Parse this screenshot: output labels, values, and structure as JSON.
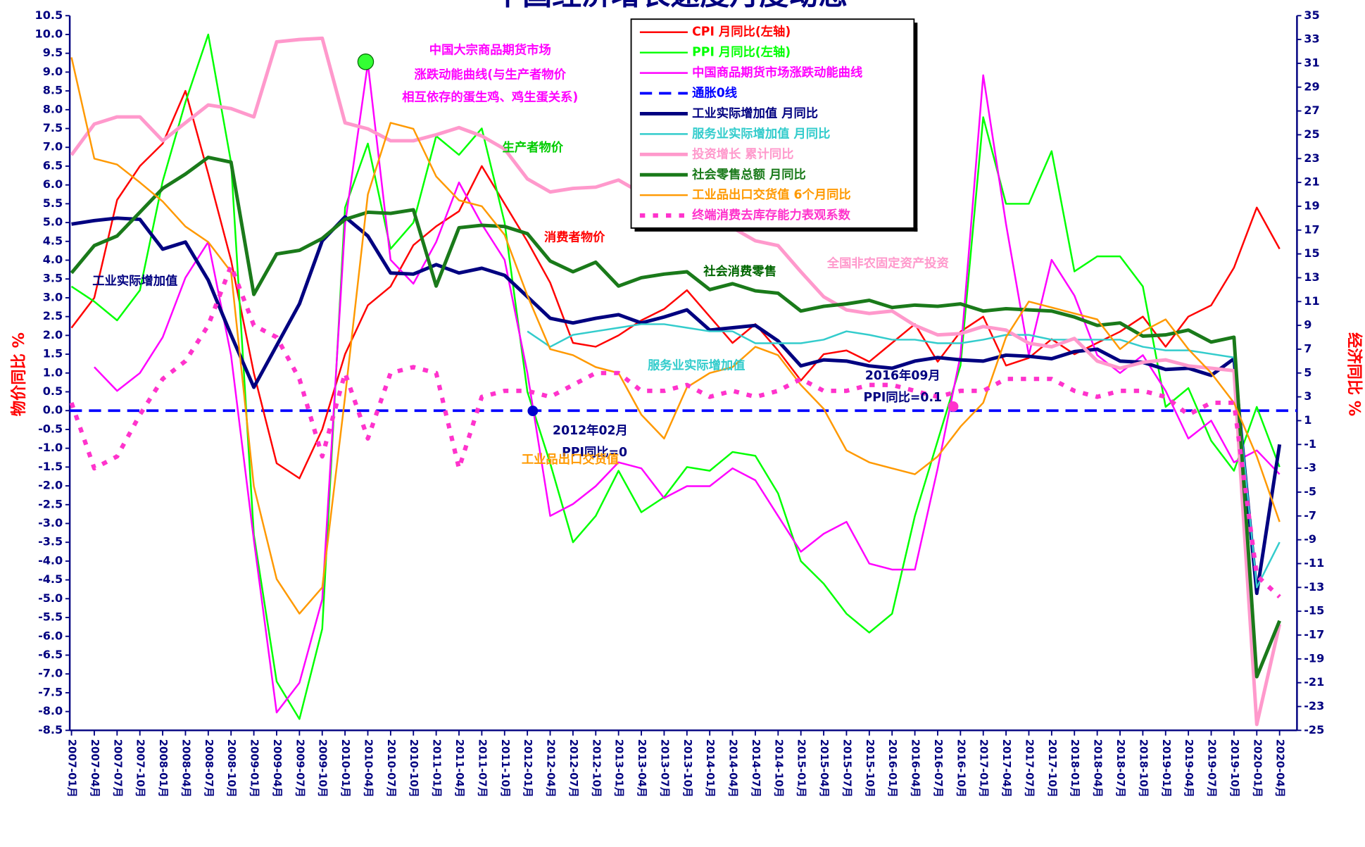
{
  "chart_data": {
    "type": "line",
    "title": "中国经济增长速度月度动态",
    "ylabel": "物价同比 %",
    "y2label": "经济同比 %",
    "categories": [
      "2007-01月",
      "2007-04月",
      "2007-07月",
      "2007-10月",
      "2008-01月",
      "2008-04月",
      "2008-07月",
      "2008-10月",
      "2009-01月",
      "2009-04月",
      "2009-07月",
      "2009-10月",
      "2010-01月",
      "2010-04月",
      "2010-07月",
      "2010-10月",
      "2011-01月",
      "2011-04月",
      "2011-07月",
      "2011-10月",
      "2012-01月",
      "2012-04月",
      "2012-07月",
      "2012-10月",
      "2013-01月",
      "2013-04月",
      "2013-07月",
      "2013-10月",
      "2014-01月",
      "2014-04月",
      "2014-07月",
      "2014-10月",
      "2015-01月",
      "2015-04月",
      "2015-07月",
      "2015-10月",
      "2016-01月",
      "2016-04月",
      "2016-07月",
      "2016-10月",
      "2017-01月",
      "2017-04月",
      "2017-07月",
      "2017-10月",
      "2018-01月",
      "2018-04月",
      "2018-07月",
      "2018-10月",
      "2019-01月",
      "2019-04月",
      "2019-07月",
      "2019-10月",
      "2020-01月",
      "2020-04月"
    ],
    "ylim": [
      -8.5,
      10.5
    ],
    "yticks": [
      10.5,
      {
        "value": 10,
        "label": "10.0"
      },
      9.5,
      {
        "value": 9,
        "label": "9.0"
      },
      8.5,
      {
        "value": 8,
        "label": "8.0"
      },
      7.5,
      {
        "value": 7,
        "label": "7.0"
      },
      6.5,
      {
        "value": 6,
        "label": "6.0"
      },
      5.5,
      {
        "value": 5,
        "label": "5.0"
      },
      4.5,
      {
        "value": 4,
        "label": "4.0"
      },
      3.5,
      {
        "value": 3,
        "label": "3.0"
      },
      2.5,
      {
        "value": 2,
        "label": "2.0"
      },
      1.5,
      {
        "value": 1,
        "label": "1.0"
      },
      0.5,
      {
        "value": 0,
        "label": "0.0"
      },
      -0.5,
      {
        "value": -1,
        "label": "-1.0"
      },
      -1.5,
      {
        "value": -2,
        "label": "-2.0"
      },
      -2.5,
      {
        "value": -3,
        "label": "-3.0"
      },
      -3.5,
      {
        "value": -4,
        "label": "-4.0"
      },
      -4.5,
      {
        "value": -5,
        "label": "-5.0"
      },
      -5.5,
      {
        "value": -6,
        "label": "-6.0"
      },
      -6.5,
      {
        "value": -7,
        "label": "-7.0"
      },
      -7.5,
      {
        "value": -8,
        "label": "-8.0"
      },
      -8.5
    ],
    "y2lim": [
      -25,
      35
    ],
    "y2ticks": [
      35,
      33,
      31,
      29,
      27,
      25,
      23,
      21,
      19,
      17,
      15,
      13,
      11,
      9,
      7,
      5,
      3,
      1,
      -1,
      -3,
      -5,
      -7,
      -9,
      -11,
      -13,
      -15,
      -17,
      -19,
      -21,
      -23,
      -25
    ],
    "reference_line": {
      "name": "通胀0线",
      "value": 0,
      "color": "#0000ff",
      "dash": "dashed"
    },
    "series": [
      {
        "name": "CPI 月同比(左轴)",
        "color": "#ff0000",
        "width": 2,
        "values": [
          2.2,
          3.0,
          5.6,
          6.5,
          7.1,
          8.5,
          6.3,
          4.0,
          1.0,
          -1.4,
          -1.8,
          -0.5,
          1.5,
          2.8,
          3.3,
          4.4,
          4.9,
          5.3,
          6.5,
          5.5,
          4.5,
          3.4,
          1.8,
          1.7,
          2.0,
          2.4,
          2.7,
          3.2,
          2.5,
          1.8,
          2.3,
          1.6,
          0.8,
          1.5,
          1.6,
          1.3,
          1.8,
          2.3,
          1.3,
          2.1,
          2.5,
          1.2,
          1.4,
          1.9,
          1.5,
          1.8,
          2.1,
          2.5,
          1.7,
          2.5,
          2.8,
          3.8,
          5.4,
          4.3
        ]
      },
      {
        "name": "PPI 月同比(左轴)",
        "color": "#00ff00",
        "width": 2,
        "values": [
          3.3,
          2.9,
          2.4,
          3.2,
          6.1,
          8.2,
          10.0,
          6.6,
          -3.3,
          -7.2,
          -8.2,
          -5.8,
          5.4,
          7.1,
          4.3,
          5.0,
          7.3,
          6.8,
          7.5,
          5.0,
          0.5,
          -1.4,
          -3.5,
          -2.8,
          -1.6,
          -2.7,
          -2.3,
          -1.5,
          -1.6,
          -1.1,
          -1.2,
          -2.2,
          -4.0,
          -4.6,
          -5.4,
          -5.9,
          -5.4,
          -2.8,
          -0.8,
          1.2,
          7.8,
          5.5,
          5.5,
          6.9,
          3.7,
          4.1,
          4.1,
          3.3,
          0.1,
          0.6,
          -0.8,
          -1.6,
          0.1,
          -1.5
        ]
      },
      {
        "name": "中国商品期货市场涨跌动能曲线",
        "color": "#ff00ff",
        "width": 2,
        "axis": "y2",
        "values": [
          null,
          5.5,
          3.5,
          5,
          8,
          13,
          16,
          6.5,
          -9,
          -23.5,
          -21,
          -14,
          17.5,
          31,
          14.5,
          12.5,
          16,
          21,
          17.5,
          14.5,
          5,
          -7,
          -6,
          -4.5,
          -2.5,
          -3,
          -5.5,
          -4.5,
          -4.5,
          -3,
          -4,
          -7,
          -10,
          -8.5,
          -7.5,
          -11,
          -11.5,
          -11.5,
          -3,
          6.5,
          30,
          17.5,
          6.5,
          14.5,
          11.5,
          6.5,
          5,
          6.5,
          3.5,
          -0.5,
          1,
          -2.5,
          -1.5,
          -3.5
        ]
      },
      {
        "name": "工业实际增加值 月同比",
        "color": "#000080",
        "width": 4,
        "axis": "y2",
        "values": [
          17.5,
          17.8,
          18,
          17.9,
          15.4,
          16,
          12.8,
          8.2,
          3.8,
          7.3,
          10.8,
          16.1,
          18.1,
          16.5,
          13.4,
          13.3,
          14.1,
          13.4,
          13.8,
          13.2,
          11.4,
          9.6,
          9.2,
          9.6,
          9.9,
          9.2,
          9.7,
          10.3,
          8.6,
          8.8,
          9.0,
          7.7,
          5.6,
          6.1,
          6.0,
          5.6,
          5.4,
          6.0,
          6.3,
          6.1,
          6.0,
          6.5,
          6.4,
          6.2,
          6.8,
          7.0,
          6.0,
          5.9,
          5.3,
          5.4,
          4.8,
          6.2,
          -13.5,
          -1.0
        ]
      },
      {
        "name": "服务业实际增加值 月同比",
        "color": "#33cccc",
        "width": 2,
        "axis": "y2",
        "values": [
          null,
          null,
          null,
          null,
          null,
          null,
          null,
          null,
          null,
          null,
          null,
          null,
          null,
          null,
          null,
          null,
          null,
          null,
          null,
          null,
          8.5,
          7.2,
          8.2,
          8.5,
          8.8,
          9.1,
          9.1,
          8.8,
          8.5,
          8.5,
          7.5,
          7.5,
          7.5,
          7.8,
          8.5,
          8.2,
          7.8,
          7.8,
          7.5,
          7.5,
          7.8,
          8.2,
          8.2,
          7.8,
          7.8,
          7.8,
          7.8,
          7.2,
          6.9,
          6.9,
          6.6,
          6.3,
          -13,
          -9.2
        ]
      },
      {
        "name": "投资增长 累计同比",
        "color": "#ff99cc",
        "width": 4,
        "axis": "y2",
        "values": [
          23.3,
          25.9,
          26.5,
          26.5,
          24.5,
          26,
          27.5,
          27.2,
          26.5,
          32.8,
          33,
          33.1,
          26,
          25.5,
          24.5,
          24.5,
          25,
          25.6,
          24.9,
          23.8,
          21.3,
          20.2,
          20.5,
          20.6,
          21.2,
          20.1,
          20.3,
          19.9,
          17.6,
          17.2,
          16.1,
          15.7,
          13.5,
          11.4,
          10.3,
          10,
          10.2,
          9,
          8.2,
          8.3,
          8.9,
          8.6,
          7.5,
          7.2,
          7.9,
          6,
          5.4,
          5.9,
          6.1,
          5.6,
          5.4,
          5.2,
          -24.5,
          -16.1
        ]
      },
      {
        "name": "社会零售总额 月同比",
        "color": "#1a7a1a",
        "width": 4,
        "axis": "y2",
        "values": [
          13.4,
          15.7,
          16.5,
          18.5,
          20.5,
          21.7,
          23.1,
          22.7,
          11.6,
          15,
          15.3,
          16.3,
          17.9,
          18.5,
          18.4,
          18.7,
          12.3,
          17.2,
          17.4,
          17.3,
          16.7,
          14.4,
          13.5,
          14.3,
          12.3,
          13,
          13.3,
          13.5,
          12,
          12.5,
          11.9,
          11.7,
          10.2,
          10.6,
          10.8,
          11.1,
          10.5,
          10.7,
          10.6,
          10.8,
          10.2,
          10.4,
          10.3,
          10.2,
          9.7,
          9,
          9.2,
          8.1,
          8.2,
          8.6,
          7.6,
          8,
          -20.5,
          -15.8
        ]
      },
      {
        "name": "工业品出口交货值 6个月同比",
        "color": "#ff9900",
        "width": 2,
        "axis": "y2",
        "values": [
          31.5,
          23,
          22.5,
          21,
          19.4,
          17.3,
          16,
          13.5,
          -4.5,
          -12.3,
          -15.2,
          -13,
          3,
          20,
          26,
          25.5,
          21.5,
          19.5,
          19,
          16.6,
          11.5,
          7,
          6.5,
          5.5,
          5,
          1.5,
          -0.5,
          3.8,
          5,
          5.5,
          7.2,
          6.5,
          4,
          2,
          -1.5,
          -2.5,
          -3,
          -3.5,
          -2,
          0.5,
          2.5,
          8,
          11,
          10.5,
          10,
          9.5,
          7,
          8.5,
          9.5,
          7,
          5,
          2.5,
          -2,
          -7.5
        ]
      },
      {
        "name": "终端消费去库存能力表观系数",
        "color": "#ff33cc",
        "width": 5,
        "dash": "dotted",
        "axis": "y2",
        "values": [
          2.5,
          -3,
          -2,
          1.5,
          4.5,
          6,
          9,
          14,
          9,
          8,
          4.5,
          -2,
          5,
          -0.5,
          5,
          5.5,
          5,
          -3,
          3,
          3.5,
          3.5,
          3,
          4,
          5,
          5,
          3.5,
          3.5,
          4,
          3,
          3.5,
          3,
          3.5,
          4.5,
          3.5,
          3.5,
          4,
          4,
          3.5,
          3,
          3.5,
          3.5,
          4.5,
          4.5,
          4.5,
          3.5,
          3,
          3.5,
          3.5,
          3,
          1.5,
          2.5,
          2.5,
          -12,
          -13.8
        ]
      }
    ],
    "annotations": [
      "中国大宗商品期货市场",
      "涨跌动能曲线(与生产者物价",
      "相互依存的蛋生鸡、鸡生蛋关系)",
      "生产者物价",
      "消费者物价",
      "社会消费零售",
      "全国非农固定资产投资",
      "工业实际增加值",
      "服务业实际增加值",
      "2016年09月",
      "PPI同比=0.1",
      "2012年02月",
      "PPI同比=0",
      "工业品出口交货值"
    ]
  }
}
